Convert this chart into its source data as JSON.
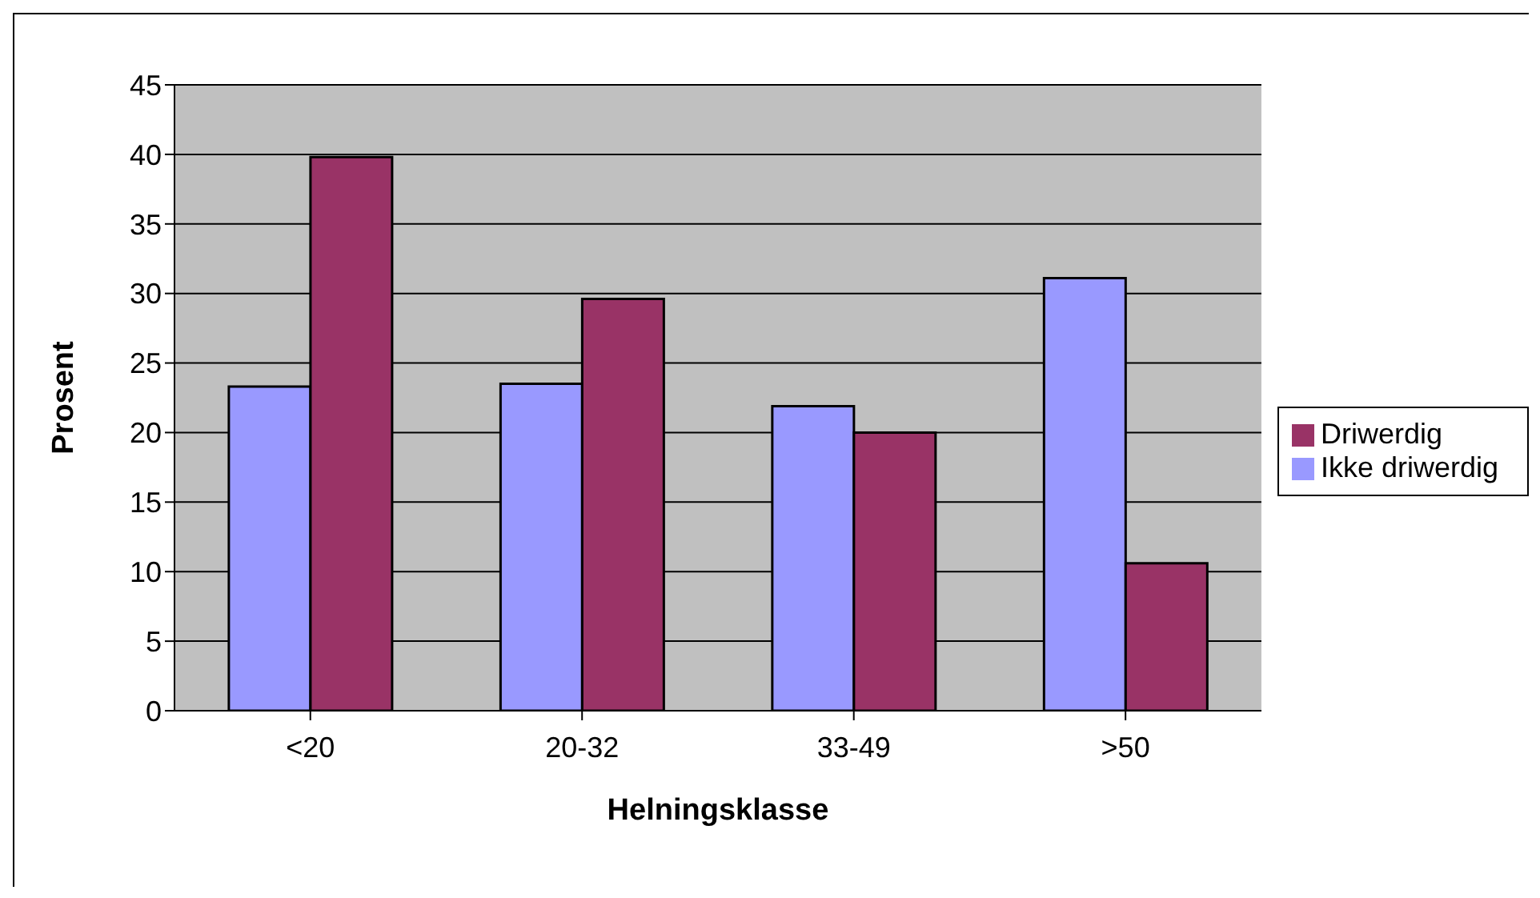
{
  "chart_data": {
    "type": "bar",
    "xlabel": "Helningsklasse",
    "ylabel": "Prosent",
    "categories": [
      "<20",
      "20-32",
      "33-49",
      ">50"
    ],
    "series": [
      {
        "name": "Ikke driwerdig",
        "color": "#9999ff",
        "values": [
          23.3,
          23.5,
          21.9,
          31.1
        ]
      },
      {
        "name": "Driwerdig",
        "color": "#993366",
        "values": [
          39.8,
          29.6,
          20.0,
          10.6
        ]
      }
    ],
    "ylim": [
      0,
      45
    ],
    "yticks": [
      0,
      5,
      10,
      15,
      20,
      25,
      30,
      35,
      40,
      45
    ],
    "grid": "y",
    "legend": "right"
  }
}
